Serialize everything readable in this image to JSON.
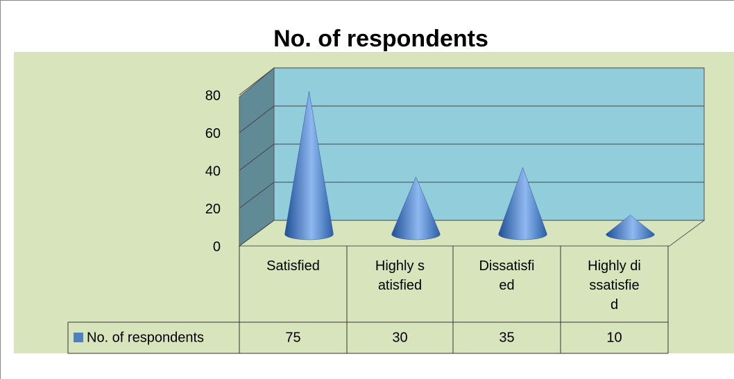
{
  "chart_data": {
    "type": "cone",
    "title": "No. of respondents",
    "categories": [
      "Satisfied",
      "Highly satisfied",
      "Dissatisfied",
      "Highly dissatisfied"
    ],
    "series": [
      {
        "name": "No. of respondents",
        "color": "#4f81bd",
        "values": [
          75,
          30,
          35,
          10
        ]
      }
    ],
    "ylim": [
      0,
      80
    ],
    "yticks": [
      0,
      20,
      40,
      60,
      80
    ],
    "grid": true,
    "legend": "bottom"
  }
}
